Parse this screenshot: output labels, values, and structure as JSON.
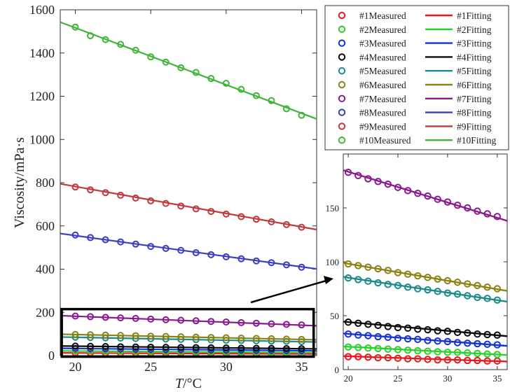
{
  "chart_data": [
    {
      "type": "line",
      "panel": "main",
      "title": "",
      "xlabel_italic": "T",
      "xlabel_unit": "/°C",
      "ylabel": "Viscosity/mPa·s",
      "xlim": [
        19,
        36
      ],
      "ylim": [
        0,
        1600
      ],
      "xticks": [
        20,
        25,
        30,
        35
      ],
      "yticks": [
        0,
        200,
        400,
        600,
        800,
        1000,
        1200,
        1400,
        1600
      ],
      "x": [
        20,
        21,
        22,
        23,
        24,
        25,
        26,
        27,
        28,
        29,
        30,
        31,
        32,
        33,
        34,
        35
      ],
      "series": [
        {
          "name": "#1",
          "color": "#e8191c",
          "measured": [
            12,
            12,
            11.5,
            11,
            11,
            10.5,
            10,
            10,
            9.5,
            9,
            9,
            9,
            8.5,
            8.5,
            8,
            8
          ],
          "fit_start": 12.5,
          "fit_end": 7.5
        },
        {
          "name": "#2",
          "color": "#2bd12b",
          "measured": [
            21,
            20.5,
            20,
            19.5,
            19,
            18.5,
            18,
            17.5,
            17,
            16.5,
            16,
            16,
            15.5,
            15,
            14.5,
            14
          ],
          "fit_start": 21.5,
          "fit_end": 13.5
        },
        {
          "name": "#3",
          "color": "#1532d6",
          "measured": [
            33,
            32,
            31.5,
            30.5,
            30,
            29,
            28.5,
            28,
            27,
            26.5,
            26,
            25,
            24.5,
            24,
            23.5,
            23
          ],
          "fit_start": 33.5,
          "fit_end": 22
        },
        {
          "name": "#4",
          "color": "#0a0a0a",
          "measured": [
            44,
            43,
            42,
            41,
            40,
            39,
            38.5,
            37.5,
            37,
            36,
            35.5,
            34.5,
            34,
            33,
            32.5,
            32
          ],
          "fit_start": 44.5,
          "fit_end": 31
        },
        {
          "name": "#5",
          "color": "#1a8a8a",
          "measured": [
            85,
            83.5,
            82,
            80.5,
            79,
            78,
            76.5,
            75,
            74,
            72.5,
            71,
            70,
            68.5,
            67,
            66,
            64.5
          ],
          "fit_start": 86,
          "fit_end": 63
        },
        {
          "name": "#6",
          "color": "#8c8214",
          "measured": [
            98,
            96.5,
            95,
            93.5,
            92,
            90,
            88.5,
            87,
            85.5,
            84,
            82.5,
            81,
            79.5,
            78,
            76.5,
            75
          ],
          "fit_start": 99,
          "fit_end": 73
        },
        {
          "name": "#7",
          "color": "#8a1a8e",
          "measured": [
            183,
            180,
            177,
            174.5,
            172,
            169,
            166,
            163.5,
            161,
            158,
            155.5,
            152.5,
            150,
            147,
            144.5,
            142
          ],
          "fit_start": 185,
          "fit_end": 138
        },
        {
          "name": "#8",
          "color": "#3a3ebf",
          "measured": [
            558,
            546,
            536,
            526,
            516,
            505,
            496,
            487,
            476,
            467,
            457,
            448,
            438,
            430,
            420,
            409
          ],
          "fit_start": 565,
          "fit_end": 401
        },
        {
          "name": "#9",
          "color": "#c0393b",
          "measured": [
            780,
            767,
            754,
            742,
            729,
            716,
            704,
            692,
            679,
            667,
            655,
            643,
            631,
            619,
            606,
            594
          ],
          "fit_start": 795,
          "fit_end": 583
        },
        {
          "name": "#10",
          "color": "#3fb53a",
          "measured": [
            1520,
            1480,
            1462,
            1440,
            1413,
            1382,
            1358,
            1332,
            1310,
            1282,
            1260,
            1232,
            1203,
            1180,
            1142,
            1112
          ],
          "fit_start": 1543,
          "fit_end": 1095
        }
      ],
      "legend": {
        "placement": "top-right",
        "measured_suffix": "Measured",
        "fitting_suffix": "Fitting"
      },
      "annotation": "zoom box 0–200 at x 19–36"
    },
    {
      "type": "line",
      "panel": "inset",
      "xlim": [
        19.5,
        36
      ],
      "ylim": [
        0,
        200
      ],
      "xticks": [
        20,
        25,
        30,
        35
      ],
      "yticks": [
        0,
        50,
        100,
        150
      ],
      "series_shown": [
        "#1",
        "#2",
        "#3",
        "#4",
        "#5",
        "#6",
        "#7"
      ]
    }
  ]
}
